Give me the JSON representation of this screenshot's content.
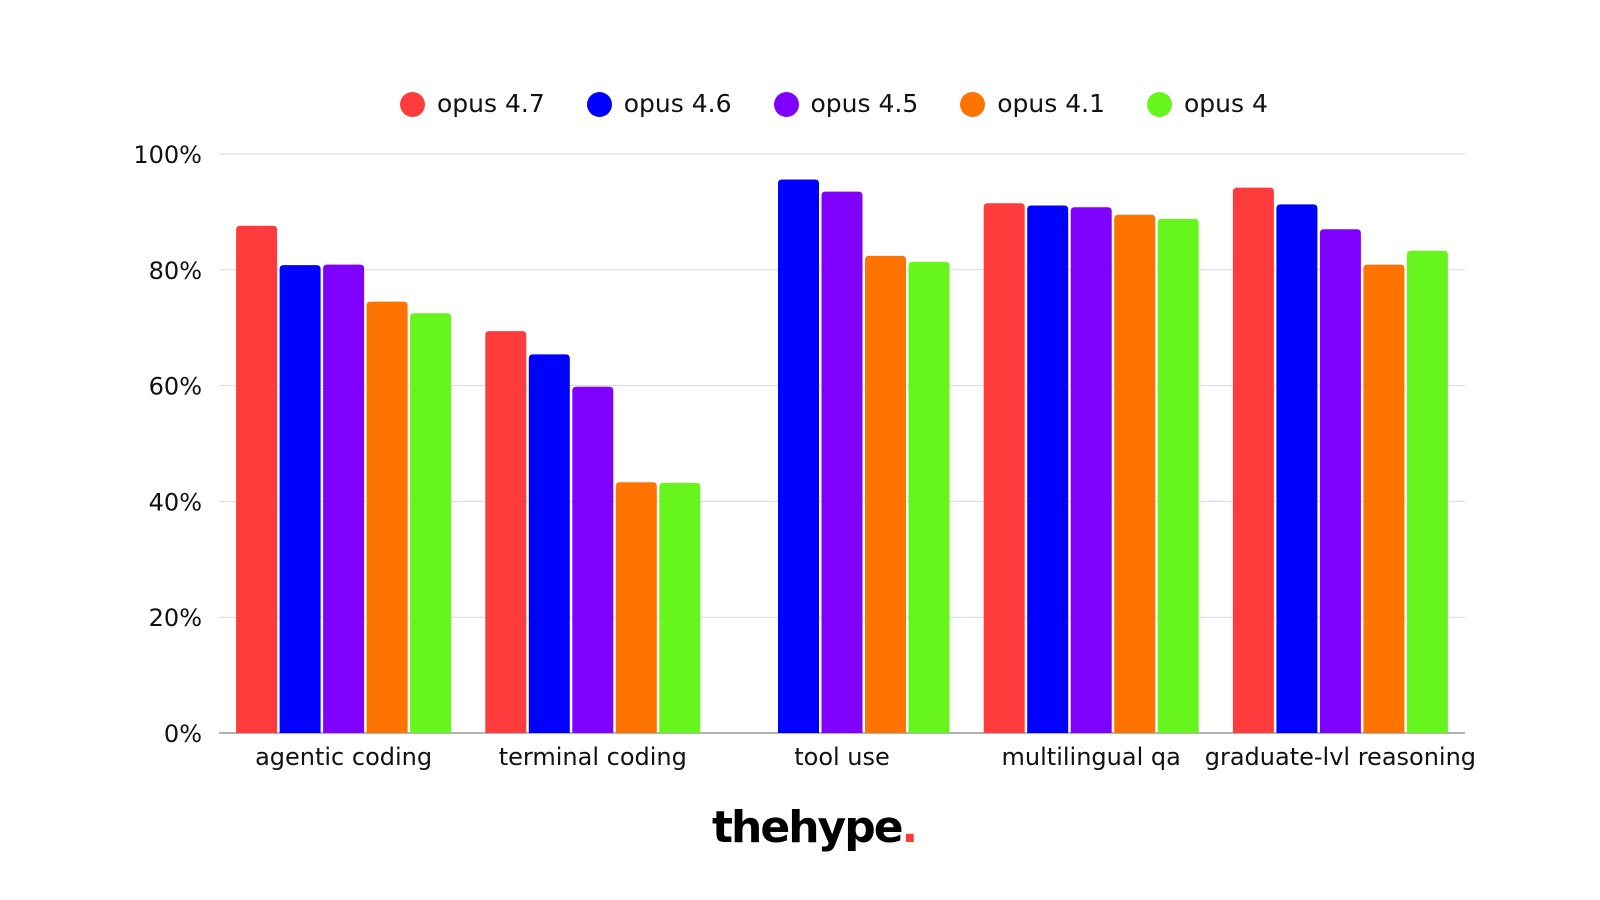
{
  "chart_data": {
    "type": "bar",
    "title": "",
    "xlabel": "",
    "ylabel": "",
    "ylim": [
      0,
      100
    ],
    "yticks": [
      "0%",
      "20%",
      "40%",
      "60%",
      "80%",
      "100%"
    ],
    "grid": true,
    "legend_position": "top",
    "categories": [
      "agentic coding",
      "terminal coding",
      "tool use",
      "multilingual qa",
      "graduate-lvl reasoning"
    ],
    "series": [
      {
        "name": "opus 4.7",
        "color": "#ff3b3b",
        "values": [
          87.6,
          69.4,
          null,
          91.5,
          94.2
        ]
      },
      {
        "name": "opus 4.6",
        "color": "#0000ff",
        "values": [
          80.8,
          65.4,
          95.6,
          91.1,
          91.3
        ]
      },
      {
        "name": "opus 4.5",
        "color": "#8000ff",
        "values": [
          80.9,
          59.8,
          93.5,
          90.8,
          87.0
        ]
      },
      {
        "name": "opus 4.1",
        "color": "#ff7300",
        "values": [
          74.5,
          43.3,
          82.4,
          89.5,
          80.9
        ]
      },
      {
        "name": "opus 4",
        "color": "#66f51c",
        "values": [
          72.5,
          43.2,
          81.4,
          88.8,
          83.3
        ]
      }
    ]
  },
  "brand": {
    "logo_text": "thehype",
    "logo_dot": ".",
    "dot_color": "#ff3b30"
  }
}
